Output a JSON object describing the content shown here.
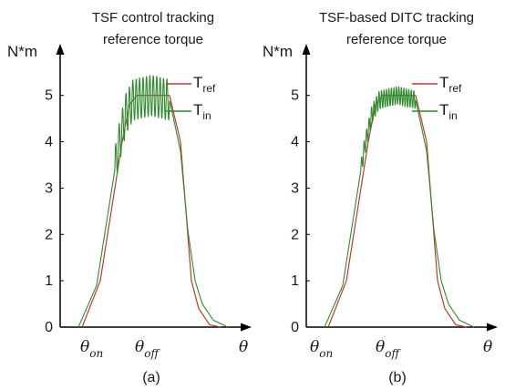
{
  "chart_data": [
    {
      "type": "line",
      "panel": "a",
      "title_lines": [
        "TSF control tracking",
        "reference torque"
      ],
      "ylabel": "N*m",
      "xlabel": "θ",
      "caption": "(a)",
      "yticks": [
        "0",
        "1",
        "2",
        "3",
        "4",
        "5"
      ],
      "ylim": [
        0,
        5.8
      ],
      "x_markers": [
        {
          "symbol": "θ",
          "subscript": "on"
        },
        {
          "symbol": "θ",
          "subscript": "off"
        }
      ],
      "legend": [
        {
          "main": "T",
          "sub": "ref",
          "color": "#c0392b"
        },
        {
          "main": "T",
          "sub": "in",
          "color": "#2e8b2e"
        }
      ],
      "series": [
        {
          "legend_index": 0,
          "x": [
            0.12,
            0.22,
            0.3,
            0.34,
            0.38,
            0.42,
            0.52,
            0.6,
            0.66,
            0.7,
            0.72,
            0.76,
            0.82,
            0.88
          ],
          "y": [
            0,
            1,
            3,
            4,
            4.8,
            5,
            5,
            5,
            4,
            2,
            1,
            0.4,
            0.05,
            0
          ]
        },
        {
          "legend_index": 1,
          "x": [
            0.1,
            0.2,
            0.28,
            0.32,
            0.36,
            0.4,
            0.5,
            0.6,
            0.66,
            0.7,
            0.74,
            0.78,
            0.84,
            0.92
          ],
          "y": [
            0,
            0.9,
            2.9,
            3.9,
            4.6,
            4.9,
            5.0,
            4.9,
            3.8,
            2.1,
            1.0,
            0.5,
            0.15,
            0
          ]
        }
      ],
      "ripple": {
        "legend_index": 1,
        "x_start": 0.3,
        "x_end": 0.6,
        "amplitude": 0.45,
        "periods": 16
      }
    },
    {
      "type": "line",
      "panel": "b",
      "title_lines": [
        "TSF-based DITC tracking",
        "reference torque"
      ],
      "ylabel": "N*m",
      "xlabel": "θ",
      "caption": "(b)",
      "yticks": [
        "0",
        "1",
        "2",
        "3",
        "4",
        "5"
      ],
      "ylim": [
        0,
        5.8
      ],
      "x_markers": [
        {
          "symbol": "θ",
          "subscript": "on"
        },
        {
          "symbol": "θ",
          "subscript": "off"
        }
      ],
      "legend": [
        {
          "main": "T",
          "sub": "ref",
          "color": "#c0392b"
        },
        {
          "main": "T",
          "sub": "in",
          "color": "#2e8b2e"
        }
      ],
      "series": [
        {
          "legend_index": 0,
          "x": [
            0.12,
            0.22,
            0.3,
            0.34,
            0.38,
            0.42,
            0.52,
            0.6,
            0.66,
            0.7,
            0.72,
            0.76,
            0.82,
            0.88
          ],
          "y": [
            0,
            1,
            3,
            4,
            4.8,
            5,
            5,
            5,
            4,
            2,
            1,
            0.4,
            0.05,
            0
          ]
        },
        {
          "legend_index": 1,
          "x": [
            0.1,
            0.2,
            0.28,
            0.32,
            0.36,
            0.4,
            0.5,
            0.6,
            0.66,
            0.7,
            0.74,
            0.78,
            0.84,
            0.92
          ],
          "y": [
            0,
            0.9,
            2.9,
            3.9,
            4.6,
            4.9,
            5.0,
            4.9,
            3.8,
            2.1,
            1.0,
            0.5,
            0.15,
            0
          ]
        }
      ],
      "ripple": {
        "legend_index": 1,
        "x_start": 0.3,
        "x_end": 0.6,
        "amplitude": 0.2,
        "periods": 22
      }
    }
  ]
}
